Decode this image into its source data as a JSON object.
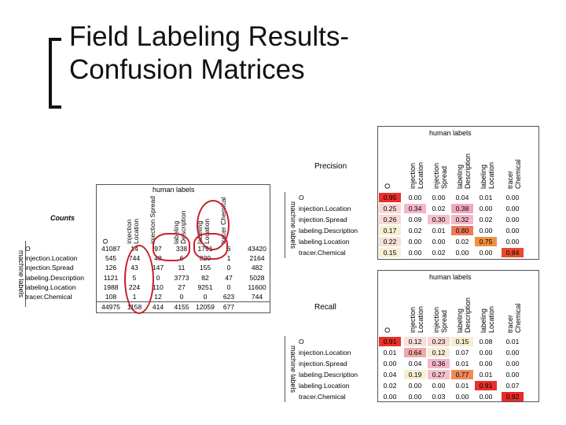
{
  "slide": {
    "title_line1": "Field Labeling Results-",
    "title_line2": "Confusion Matrices"
  },
  "counts": {
    "label": "Counts",
    "human_labels": "human labels",
    "machine_labels": "machine labels",
    "columns": [
      "O",
      "injection Location",
      "injection Spread",
      "labeling Description",
      "labeling Location",
      "tracer Chemical"
    ],
    "rows": [
      {
        "label": "O",
        "values": [
          "41087",
          "14",
          "97",
          "338",
          "1791",
          "6",
          "43420"
        ]
      },
      {
        "label": "injection.Location",
        "values": [
          "545",
          "744",
          "48",
          "6",
          "820",
          "1",
          "2164"
        ]
      },
      {
        "label": "injection.Spread",
        "values": [
          "126",
          "43",
          "147",
          "11",
          "155",
          "0",
          "482"
        ]
      },
      {
        "label": "labeling.Description",
        "values": [
          "1121",
          "5",
          "0",
          "3773",
          "82",
          "47",
          "5028"
        ]
      },
      {
        "label": "labeling.Location",
        "values": [
          "1988",
          "224",
          "110",
          "27",
          "9251",
          "0",
          "11600"
        ]
      },
      {
        "label": "tracer.Chemical",
        "values": [
          "108",
          "1",
          "12",
          "0",
          "0",
          "623",
          "744"
        ]
      }
    ],
    "totals": [
      "44975",
      "1158",
      "414",
      "4155",
      "12059",
      "677"
    ]
  },
  "precision": {
    "title": "Precision",
    "human_labels": "human labels",
    "machine_labels": "machine labels",
    "columns": [
      "O",
      "injection Location",
      "injection Spread",
      "labeling Description",
      "labeling Location",
      "tracer Chemical"
    ],
    "rows": [
      {
        "label": "O",
        "values": [
          "0.95",
          "0.00",
          "0.00",
          "0.04",
          "0.01",
          "0.00"
        ],
        "colors": [
          "#e8302a",
          "",
          "",
          "",
          "",
          ""
        ]
      },
      {
        "label": "injection.Location",
        "values": [
          "0.25",
          "0.34",
          "0.02",
          "0.38",
          "0.00",
          "0.00"
        ],
        "colors": [
          "#f8d8d4",
          "#f2b6c8",
          "",
          "#f0a8c0",
          "",
          ""
        ]
      },
      {
        "label": "injection.Spread",
        "values": [
          "0.26",
          "0.09",
          "0.30",
          "0.32",
          "0.02",
          "0.00"
        ],
        "colors": [
          "#f8d8d4",
          "",
          "#f4c0cc",
          "#f2b8c8",
          "",
          ""
        ]
      },
      {
        "label": "labeling.Description",
        "values": [
          "0.17",
          "0.02",
          "0.01",
          "0.80",
          "0.00",
          "0.00"
        ],
        "colors": [
          "#f6eed0",
          "",
          "",
          "#ee7a5a",
          "",
          ""
        ]
      },
      {
        "label": "labeling.Location",
        "values": [
          "0.22",
          "0.00",
          "0.00",
          "0.02",
          "0.75",
          "0.00"
        ],
        "colors": [
          "#f8e0d8",
          "",
          "",
          "",
          "#f09040",
          ""
        ]
      },
      {
        "label": "tracer.Chemical",
        "values": [
          "0.15",
          "0.00",
          "0.02",
          "0.00",
          "0.00",
          "0.84"
        ],
        "colors": [
          "#f6f0d4",
          "",
          "",
          "",
          "",
          "#ea4a30"
        ]
      }
    ]
  },
  "recall": {
    "title": "Recall",
    "human_labels": "human labels",
    "machine_labels": "machine labels",
    "columns": [
      "O",
      "injection Location",
      "injection Spread",
      "labeling Description",
      "labeling Location",
      "tracer Chemical"
    ],
    "rows": [
      {
        "label": "O",
        "values": [
          "0.91",
          "0.12",
          "0.23",
          "0.15",
          "0.08",
          "0.01"
        ],
        "colors": [
          "#e8302a",
          "#f8e0d8",
          "#f8d8d4",
          "#f6eed0",
          "",
          ""
        ]
      },
      {
        "label": "injection.Location",
        "values": [
          "0.01",
          "0.64",
          "0.12",
          "0.07",
          "0.00",
          "0.00"
        ],
        "colors": [
          "",
          "#f0a8a8",
          "#f8ecd8",
          "",
          "",
          ""
        ]
      },
      {
        "label": "injection.Spread",
        "values": [
          "0.00",
          "0.04",
          "0.36",
          "0.01",
          "0.00",
          "0.00"
        ],
        "colors": [
          "",
          "",
          "#f2b8c8",
          "",
          "",
          ""
        ]
      },
      {
        "label": "labeling.Description",
        "values": [
          "0.04",
          "0.19",
          "0.27",
          "0.77",
          "0.01",
          "0.00"
        ],
        "colors": [
          "",
          "#f6eed0",
          "#f4c0cc",
          "#ef8a5a",
          "",
          ""
        ]
      },
      {
        "label": "labeling.Location",
        "values": [
          "0.02",
          "0.00",
          "0.00",
          "0.01",
          "0.91",
          "0.07"
        ],
        "colors": [
          "",
          "",
          "",
          "",
          "#e8302a",
          ""
        ]
      },
      {
        "label": "tracer.Chemical",
        "values": [
          "0.00",
          "0.00",
          "0.03",
          "0.00",
          "0.00",
          "0.92"
        ],
        "colors": [
          "",
          "",
          "",
          "",
          "",
          "#e82a28"
        ]
      }
    ]
  }
}
